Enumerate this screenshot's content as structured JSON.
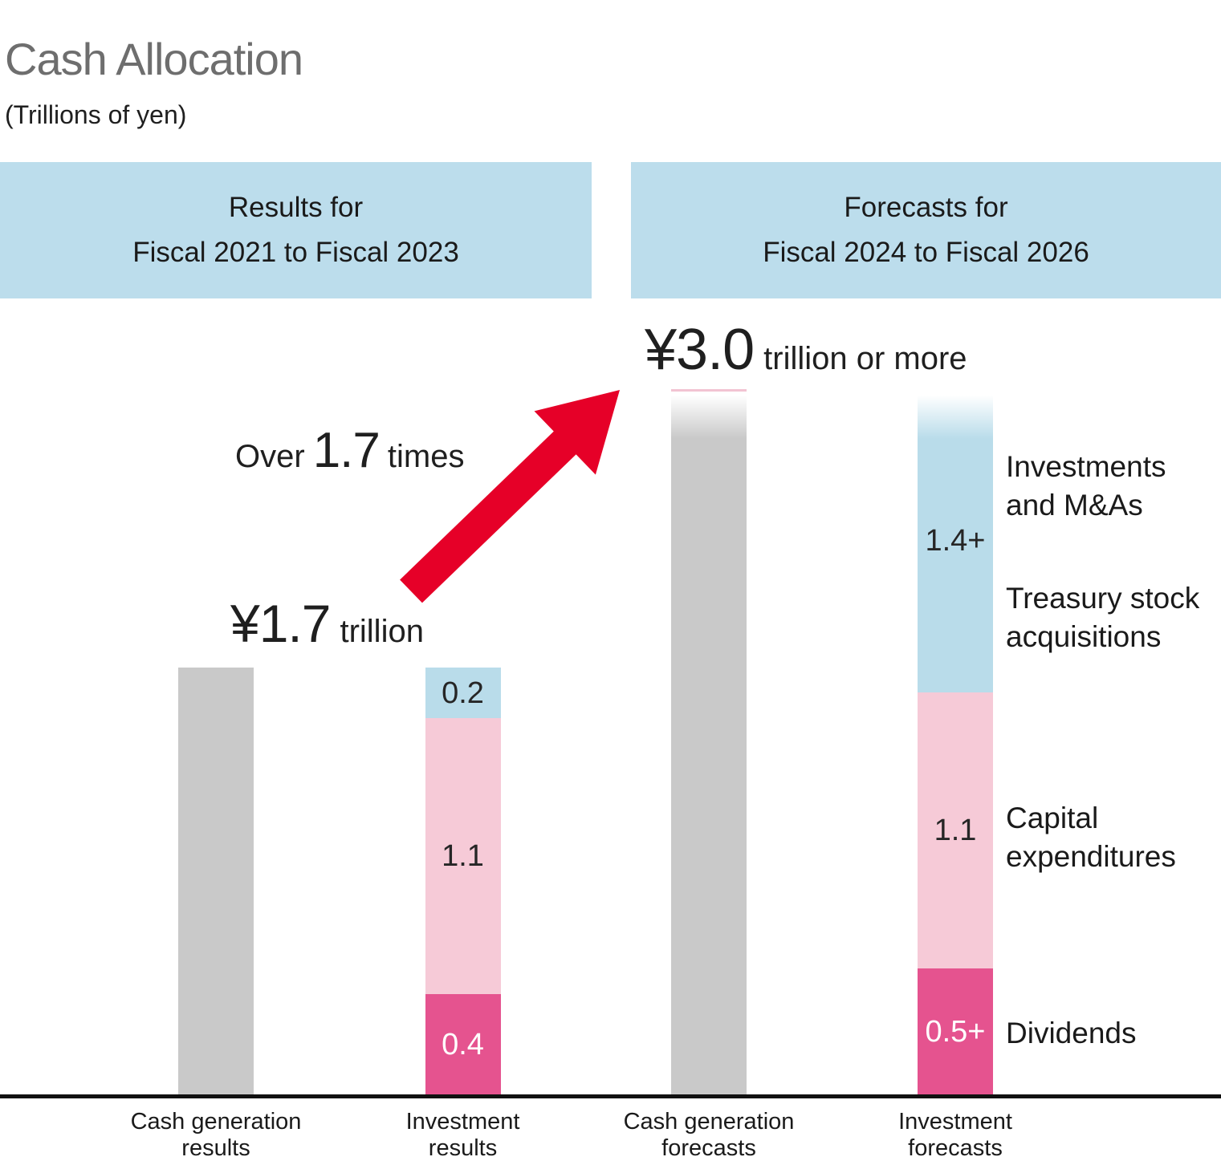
{
  "page": {
    "title": "Cash Allocation",
    "subtitle": "(Trillions of yen)"
  },
  "headers": {
    "left": {
      "line1": "Results for",
      "line2": "Fiscal 2021 to Fiscal 2023"
    },
    "right": {
      "line1": "Forecasts for",
      "line2": "Fiscal 2024 to Fiscal 2026"
    }
  },
  "growth_note": {
    "prefix": "Over",
    "value": "1.7",
    "suffix": "times"
  },
  "totals": {
    "results": {
      "amount": "¥1.7",
      "unit": "trillion"
    },
    "forecasts": {
      "amount": "¥3.0",
      "unit": "trillion or more"
    }
  },
  "side_labels": [
    {
      "lines": [
        "Investments",
        "and M&As"
      ]
    },
    {
      "lines": [
        "Treasury stock",
        "acquisitions"
      ]
    },
    {
      "lines": [
        "Capital",
        "expenditures"
      ]
    },
    {
      "lines": [
        "Dividends"
      ]
    }
  ],
  "colors": {
    "gray": "#c9c9c9",
    "light_blue": "#b9dcea",
    "light_pink": "#f6cad7",
    "dark_pink": "#e5538f",
    "header_blue": "#bcddec",
    "red": "#e60028",
    "fade_pink_line": "#f2c3d2"
  },
  "chart_data": {
    "type": "bar",
    "stacked": true,
    "title": "Cash Allocation",
    "unit_label": "Trillions of yen",
    "ylim": [
      0,
      3.0
    ],
    "categories": [
      "Cash generation results",
      "Investment results",
      "Cash generation forecasts",
      "Investment forecasts"
    ],
    "bars": [
      {
        "category": "Cash generation results",
        "category_lines": [
          "Cash generation",
          "results"
        ],
        "total": 1.7,
        "total_label": "¥1.7 trillion",
        "fade_top": false,
        "segments": [
          {
            "name": "cash generation",
            "value": 1.7,
            "display_value": "",
            "color": "gray"
          }
        ]
      },
      {
        "category": "Investment results",
        "category_lines": [
          "Investment",
          "results"
        ],
        "total": 1.7,
        "fade_top": false,
        "segments": [
          {
            "name": "dividends",
            "value": 0.4,
            "display_value": "0.4",
            "color": "dark_pink",
            "label_style": "light"
          },
          {
            "name": "capital expenditures",
            "value": 1.1,
            "display_value": "1.1",
            "color": "light_pink",
            "label_style": "dark"
          },
          {
            "name": "investments and treasury stock",
            "value": 0.2,
            "display_value": "0.2",
            "color": "light_blue",
            "label_style": "dark"
          }
        ]
      },
      {
        "category": "Cash generation forecasts",
        "category_lines": [
          "Cash generation",
          "forecasts"
        ],
        "total": 3.0,
        "total_label": "¥3.0 trillion or more",
        "fade_top": true,
        "pink_top_line": true,
        "segments": [
          {
            "name": "cash generation",
            "value": 3.0,
            "display_value": "",
            "color": "gray"
          }
        ]
      },
      {
        "category": "Investment forecasts",
        "category_lines": [
          "Investment",
          "forecasts"
        ],
        "total": 3.0,
        "fade_top": true,
        "segments": [
          {
            "name": "dividends",
            "value": 0.5,
            "display_value": "0.5+",
            "color": "dark_pink",
            "label_style": "light",
            "open_ended": true
          },
          {
            "name": "capital expenditures",
            "value": 1.1,
            "display_value": "1.1",
            "color": "light_pink",
            "label_style": "dark"
          },
          {
            "name": "investments, M&As and treasury stock acquisitions",
            "value": 1.4,
            "display_value": "1.4+",
            "color": "light_blue",
            "label_style": "dark",
            "open_ended": true
          }
        ]
      }
    ],
    "growth_annotation": "Over 1.7 times"
  }
}
